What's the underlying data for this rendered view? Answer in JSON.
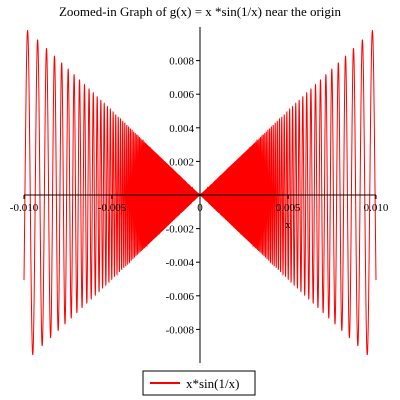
{
  "chart_data": {
    "type": "line",
    "title": "Zoomed-in Graph of g(x) = x *sin(1/x) near the origin",
    "xlabel": "x",
    "ylabel": "",
    "xlim": [
      -0.01,
      0.01
    ],
    "ylim": [
      -0.01,
      0.01
    ],
    "x_ticks": [
      {
        "value": -0.01,
        "label": "-0.010"
      },
      {
        "value": -0.005,
        "label": "-0.005"
      },
      {
        "value": 0,
        "label": "0"
      },
      {
        "value": 0.005,
        "label": "0.005"
      },
      {
        "value": 0.01,
        "label": "0.010"
      }
    ],
    "y_ticks": [
      {
        "value": 0.008,
        "label": "0.008"
      },
      {
        "value": 0.006,
        "label": "0.006"
      },
      {
        "value": 0.004,
        "label": "0.004"
      },
      {
        "value": 0.002,
        "label": "0.002"
      },
      {
        "value": -0.002,
        "label": "-0.002"
      },
      {
        "value": -0.004,
        "label": "-0.004"
      },
      {
        "value": -0.006,
        "label": "-0.006"
      },
      {
        "value": -0.008,
        "label": "-0.008"
      }
    ],
    "function": "x*sin(1/x)",
    "grid": false,
    "legend_position": "bottom-center",
    "series": [
      {
        "name": "x*sin(1/x)",
        "color": "#ff0000"
      }
    ]
  }
}
